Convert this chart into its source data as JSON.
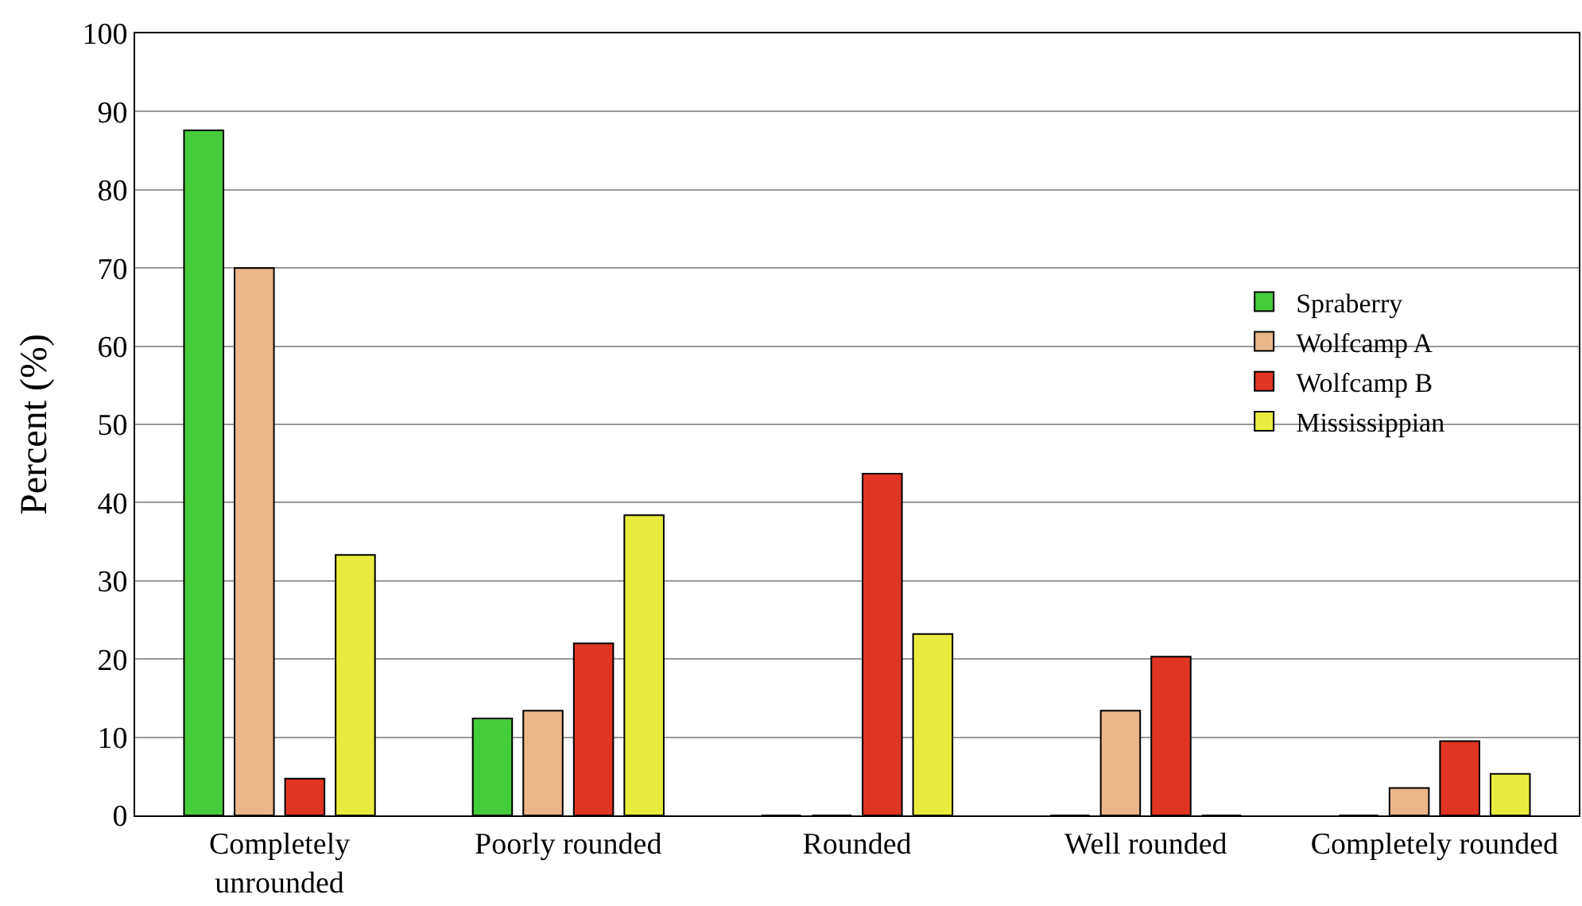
{
  "chart_data": {
    "type": "bar",
    "ylabel": "Percent (%)",
    "categories": [
      "Completely\nunrounded",
      "Poorly rounded",
      "Rounded",
      "Well rounded",
      "Completely rounded"
    ],
    "series": [
      {
        "name": "Spraberry",
        "color": "#44cc3a",
        "values": [
          87.6,
          12.4,
          0,
          0,
          0
        ]
      },
      {
        "name": "Wolfcamp A",
        "color": "#ebb68a",
        "values": [
          70,
          13.4,
          0,
          13.4,
          3.5
        ]
      },
      {
        "name": "Wolfcamp B",
        "color": "#e03522",
        "values": [
          4.7,
          22,
          43.7,
          20.3,
          9.5
        ]
      },
      {
        "name": "Mississippian",
        "color": "#e8ec3e",
        "values": [
          33.3,
          38.4,
          23.2,
          0,
          5.3
        ]
      }
    ],
    "ylim": [
      0,
      100
    ],
    "yticks": [
      0,
      10,
      20,
      30,
      40,
      50,
      60,
      70,
      80,
      90,
      100
    ],
    "grid": "y",
    "legend": "right"
  }
}
